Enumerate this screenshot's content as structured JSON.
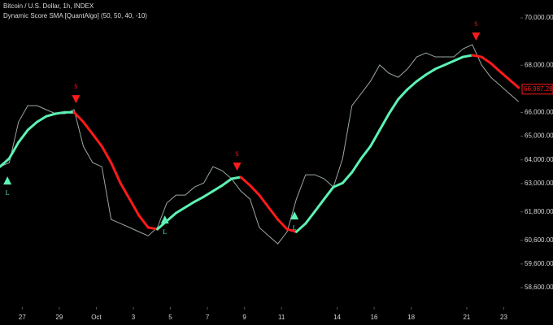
{
  "chart_data": {
    "type": "line",
    "title": "Bitcoin / U.S. Dollar, 1h, INDEX",
    "subtitle": "Dynamic Score SMA [QuantAlgo] (50, 50, 40, -10)",
    "x": [
      -1.2,
      -0.7,
      -0.2,
      0.3,
      0.8,
      1.3,
      1.8,
      2.3,
      2.8,
      3.3,
      3.8,
      4.3,
      4.8,
      5.3,
      5.8,
      6.3,
      6.8,
      7.3,
      7.8,
      8.3,
      8.8,
      9.3,
      9.8,
      10.3,
      10.8,
      11.3,
      11.8,
      12.3,
      12.8,
      13.3,
      13.8,
      14.3,
      14.8,
      15.3,
      15.8,
      16.3,
      16.8,
      17.3,
      17.8,
      18.3,
      18.8,
      19.3,
      19.8,
      20.3,
      20.8,
      21.3,
      21.8,
      22.3,
      22.8,
      23.3,
      23.8,
      24.3,
      24.8,
      25.3,
      25.8,
      26.3,
      26.8
    ],
    "price": {
      "color": "#9aa8a0",
      "values": [
        63710,
        63880,
        65600,
        66290,
        66290,
        66120,
        65950,
        65950,
        66120,
        64570,
        63880,
        63710,
        61480,
        61310,
        61140,
        60960,
        60790,
        61140,
        62170,
        62510,
        62510,
        62850,
        63020,
        63710,
        63540,
        63200,
        62680,
        62340,
        61140,
        60790,
        60450,
        60960,
        62340,
        63370,
        63370,
        63200,
        62850,
        64060,
        66290,
        66800,
        67320,
        68010,
        67660,
        67490,
        67840,
        68350,
        68520,
        68350,
        68350,
        68350,
        68690,
        68870,
        68010,
        67490,
        67150,
        66800,
        66460
      ]
    },
    "sma": {
      "up_color": "#5cf2b4",
      "down_color": "#ff1a1a",
      "values": [
        63710,
        64060,
        64740,
        65260,
        65600,
        65840,
        65950,
        66010,
        66010,
        65600,
        65090,
        64570,
        63880,
        63020,
        62340,
        61650,
        61140,
        61070,
        61410,
        61750,
        61990,
        62230,
        62440,
        62680,
        62920,
        63200,
        63270,
        62920,
        62510,
        61990,
        61480,
        61070,
        60960,
        61310,
        61820,
        62340,
        62850,
        63020,
        63470,
        64060,
        64570,
        65260,
        65950,
        66560,
        66980,
        67320,
        67600,
        67840,
        68010,
        68180,
        68350,
        68420,
        68350,
        68080,
        67730,
        67390,
        67050
      ]
    },
    "signals": [
      {
        "x": -0.8,
        "price": 63130,
        "label": "L",
        "color": "#5cf2b4"
      },
      {
        "x": 2.9,
        "price": 66560,
        "label": "S",
        "color": "#ff1a1a"
      },
      {
        "x": 7.7,
        "price": 61480,
        "label": "L",
        "color": "#5cf2b4"
      },
      {
        "x": 11.6,
        "price": 63710,
        "label": "S",
        "color": "#ff1a1a"
      },
      {
        "x": 14.7,
        "price": 61650,
        "label": "L",
        "color": "#5cf2b4"
      },
      {
        "x": 24.5,
        "price": 69210,
        "label": "S",
        "color": "#ff1a1a"
      }
    ],
    "last_price": {
      "value": 66987.28,
      "label": "66,987.28",
      "color": "#ff1a1a"
    },
    "xlim": [
      -1.2,
      26.9
    ],
    "ylim": [
      57775,
      70756
    ],
    "xticks": [
      {
        "value": 0,
        "label": "27"
      },
      {
        "value": 2,
        "label": "29"
      },
      {
        "value": 4,
        "label": "Oct"
      },
      {
        "value": 6,
        "label": "3"
      },
      {
        "value": 8,
        "label": "5"
      },
      {
        "value": 10,
        "label": "7"
      },
      {
        "value": 12,
        "label": "9"
      },
      {
        "value": 14,
        "label": "11"
      },
      {
        "value": 17,
        "label": "14"
      },
      {
        "value": 19,
        "label": "16"
      },
      {
        "value": 21,
        "label": "18"
      },
      {
        "value": 24,
        "label": "21"
      },
      {
        "value": 26,
        "label": "23"
      }
    ],
    "yticks": [
      {
        "value": 70000,
        "label": "70,000.00"
      },
      {
        "value": 68000,
        "label": "68,000.00"
      },
      {
        "value": 66000,
        "label": "66,000.00"
      },
      {
        "value": 65000,
        "label": "65,000.00"
      },
      {
        "value": 64000,
        "label": "64,000.00"
      },
      {
        "value": 63000,
        "label": "63,000.00"
      },
      {
        "value": 61800,
        "label": "61,800.00"
      },
      {
        "value": 60600,
        "label": "60,600.00"
      },
      {
        "value": 59600,
        "label": "59,600.00"
      },
      {
        "value": 58600,
        "label": "58,600.00"
      }
    ]
  }
}
